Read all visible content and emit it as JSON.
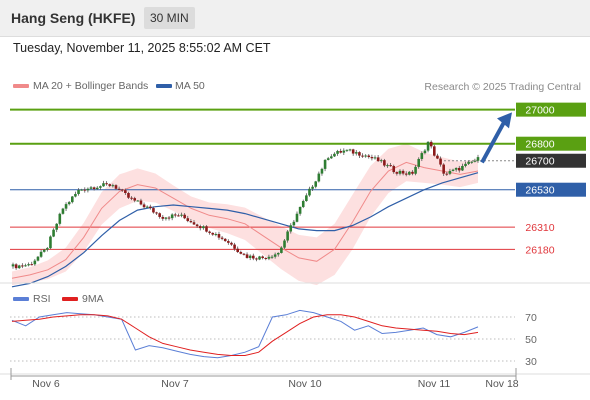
{
  "header": {
    "title": "Hang Seng (HKFE)",
    "interval": "30 MIN"
  },
  "datetime": "Tuesday, November 11, 2025 8:55:02 AM CET",
  "legend": {
    "ma20": {
      "label": "MA 20 + Bollinger Bands",
      "color": "#f08a8a"
    },
    "ma50": {
      "label": "MA 50",
      "color": "#2f5fa8"
    }
  },
  "credit": "Research © 2025 Trading Central",
  "rsi_legend": {
    "rsi": {
      "label": "RSI",
      "color": "#5b7fd6"
    },
    "ma9": {
      "label": "9MA",
      "color": "#e02020"
    }
  },
  "chart_data": [
    {
      "type": "candlestick",
      "title": "",
      "xlabel": "",
      "ylabel": "",
      "ylim": [
        26000,
        27080
      ],
      "x_tick_labels": [
        "Nov 6",
        "Nov 7",
        "Nov 10",
        "Nov 11",
        "Nov 18"
      ],
      "levels": [
        {
          "value": 27000,
          "label": "27000",
          "color": "#5aa012",
          "kind": "resistance"
        },
        {
          "value": 26800,
          "label": "26800",
          "color": "#5aa012",
          "kind": "resistance"
        },
        {
          "value": 26700,
          "label": "26700",
          "color": "#333333",
          "kind": "last-price"
        },
        {
          "value": 26530,
          "label": "26530",
          "color": "#2f5fa8",
          "kind": "pivot"
        },
        {
          "value": 26310,
          "label": "26310",
          "color": "#e0363b",
          "kind": "support"
        },
        {
          "value": 26180,
          "label": "26180",
          "color": "#e0363b",
          "kind": "support"
        }
      ],
      "target_arrow": {
        "from": 26690,
        "to": 26990,
        "direction": "up"
      },
      "series": [
        {
          "name": "MA 20 + Bollinger Bands",
          "values": [
            26010,
            26030,
            26060,
            26120,
            26250,
            26420,
            26520,
            26560,
            26540,
            26480,
            26420,
            26380,
            26360,
            26330,
            26260,
            26190,
            26130,
            26110,
            26180,
            26340,
            26520,
            26640,
            26690,
            26660,
            26640,
            26620,
            26640
          ]
        },
        {
          "name": "MA 50",
          "values": [
            25960,
            25980,
            26020,
            26080,
            26160,
            26260,
            26350,
            26410,
            26430,
            26440,
            26430,
            26420,
            26410,
            26390,
            26360,
            26330,
            26300,
            26290,
            26290,
            26320,
            26370,
            26430,
            26480,
            26530,
            26570,
            26600,
            26630
          ]
        },
        {
          "name": "Price",
          "values": [
            26080,
            26090,
            26180,
            26420,
            26530,
            26550,
            26560,
            26480,
            26430,
            26370,
            26380,
            26330,
            26280,
            26220,
            26140,
            26130,
            26160,
            26370,
            26550,
            26730,
            26760,
            26740,
            26700,
            26640,
            26620,
            26810,
            26620,
            26660,
            26710
          ]
        }
      ]
    },
    {
      "type": "line",
      "title": "",
      "ylabel": "RSI",
      "ylim": [
        20,
        80
      ],
      "reference_lines": [
        30,
        50,
        70
      ],
      "tick_labels": [
        "70",
        "50",
        "30"
      ],
      "series": [
        {
          "name": "RSI",
          "values": [
            67,
            62,
            70,
            72,
            74,
            73,
            72,
            70,
            68,
            40,
            44,
            42,
            39,
            36,
            34,
            33,
            35,
            38,
            43,
            70,
            72,
            76,
            74,
            70,
            66,
            58,
            62,
            55,
            56,
            58,
            60,
            54,
            52,
            56,
            61
          ]
        },
        {
          "name": "9MA",
          "values": [
            66,
            67,
            68,
            70,
            71,
            72,
            72,
            71,
            68,
            60,
            52,
            46,
            43,
            40,
            38,
            36,
            35,
            35,
            38,
            48,
            56,
            64,
            70,
            72,
            72,
            70,
            66,
            62,
            60,
            59,
            58,
            57,
            55,
            54,
            56
          ]
        }
      ]
    }
  ]
}
